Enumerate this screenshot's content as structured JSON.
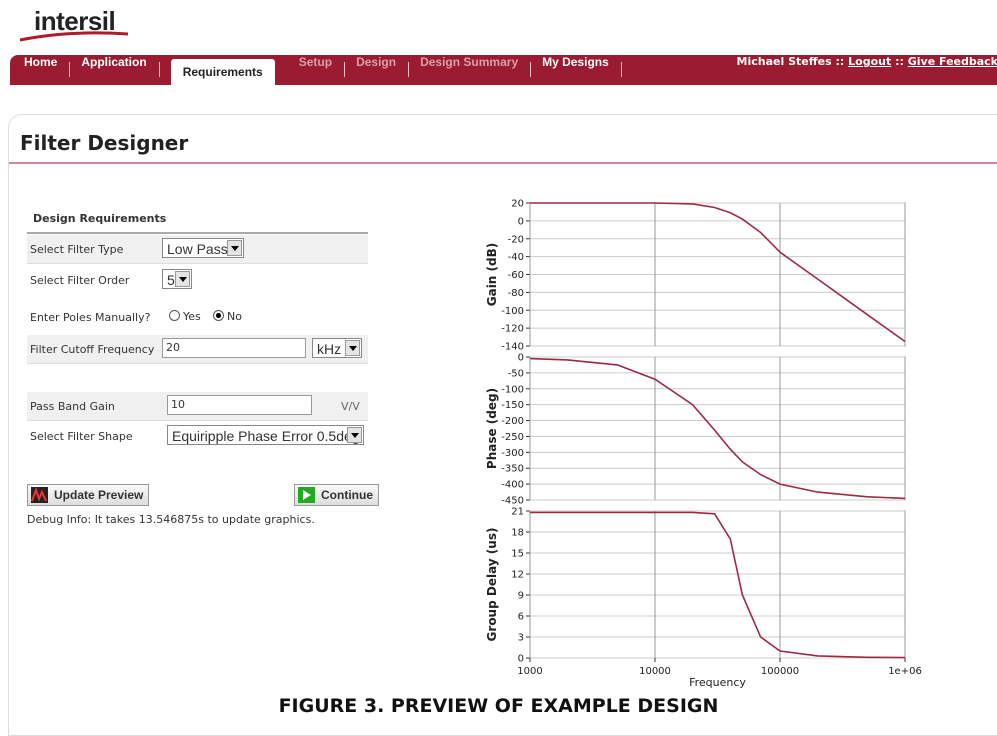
{
  "logo": "intersil",
  "nav": {
    "tabs": [
      {
        "label": "Home",
        "state": "normal"
      },
      {
        "label": "Application",
        "state": "normal"
      },
      {
        "label": "Requirements",
        "state": "active"
      },
      {
        "label": "Setup",
        "state": "disabled"
      },
      {
        "label": "Design",
        "state": "disabled"
      },
      {
        "label": "Design Summary",
        "state": "disabled"
      },
      {
        "label": "My Designs",
        "state": "normal"
      }
    ],
    "user": "Michael Steffes",
    "separator": "::",
    "logout": "Logout",
    "feedback": "Give Feedback"
  },
  "page_title": "Filter Designer",
  "form": {
    "heading": "Design Requirements",
    "filter_type": {
      "label": "Select Filter Type",
      "value": "Low Pass"
    },
    "filter_order": {
      "label": "Select Filter Order",
      "value": "5"
    },
    "poles": {
      "label": "Enter Poles Manually?",
      "options": [
        "Yes",
        "No"
      ],
      "selected": "No"
    },
    "cutoff": {
      "label": "Filter Cutoff Frequency",
      "value": "20",
      "unit": "kHz"
    },
    "gain": {
      "label": "Pass Band Gain",
      "value": "10",
      "unit": "V/V"
    },
    "shape": {
      "label": "Select Filter Shape",
      "value": "Equiripple Phase Error 0.5deg"
    },
    "update_button": "Update Preview",
    "continue_button": "Continue",
    "debug": "Debug Info: It takes 13.546875s to update graphics."
  },
  "caption": "FIGURE 3. PREVIEW OF EXAMPLE DESIGN",
  "chart_data": [
    {
      "type": "line",
      "ylabel": "Gain (dB)",
      "log_x": true,
      "grid": true,
      "show_xtick_labels": false,
      "x": [
        1000,
        2000,
        5000,
        10000,
        20000,
        30000,
        40000,
        50000,
        70000,
        100000,
        200000,
        500000,
        1000000
      ],
      "series": [
        {
          "color": "#9b2a45",
          "values": [
            20,
            20,
            20,
            20,
            19,
            15,
            9,
            2,
            -13,
            -35,
            -65,
            -105,
            -135
          ]
        }
      ],
      "xlim": [
        1000,
        1000000
      ],
      "xticks": [
        1000,
        10000,
        100000,
        1000000
      ],
      "ylim": [
        -140,
        20
      ],
      "yticks": [
        -140,
        -120,
        -100,
        -80,
        -60,
        -40,
        -20,
        0,
        20
      ]
    },
    {
      "type": "line",
      "ylabel": "Phase (deg)",
      "log_x": true,
      "grid": true,
      "show_xtick_labels": false,
      "x": [
        1000,
        2000,
        5000,
        10000,
        20000,
        30000,
        40000,
        50000,
        70000,
        100000,
        200000,
        500000,
        1000000
      ],
      "series": [
        {
          "color": "#9b2a45",
          "values": [
            -5,
            -9,
            -25,
            -70,
            -150,
            -230,
            -290,
            -330,
            -370,
            -400,
            -425,
            -440,
            -445
          ]
        }
      ],
      "xlim": [
        1000,
        1000000
      ],
      "xticks": [
        1000,
        10000,
        100000,
        1000000
      ],
      "ylim": [
        -450,
        0
      ],
      "yticks": [
        -450,
        -400,
        -350,
        -300,
        -250,
        -200,
        -150,
        -100,
        -50,
        0
      ]
    },
    {
      "type": "line",
      "ylabel": "Group Delay (us)",
      "xlabel": "Frequency",
      "log_x": true,
      "grid": true,
      "show_xtick_labels": true,
      "x": [
        1000,
        2000,
        5000,
        10000,
        20000,
        30000,
        40000,
        50000,
        70000,
        100000,
        200000,
        500000,
        1000000
      ],
      "series": [
        {
          "color": "#9b2a45",
          "values": [
            20.8,
            20.8,
            20.8,
            20.8,
            20.8,
            20.6,
            17,
            9,
            3,
            1,
            0.3,
            0.1,
            0.05
          ]
        }
      ],
      "xlim": [
        1000,
        1000000
      ],
      "xticks": [
        1000,
        10000,
        100000,
        {
          "value": 1000000,
          "label": "1e+06"
        }
      ],
      "ylim": [
        0,
        21
      ],
      "yticks": [
        0,
        3,
        6,
        9,
        12,
        15,
        18,
        21
      ]
    }
  ]
}
